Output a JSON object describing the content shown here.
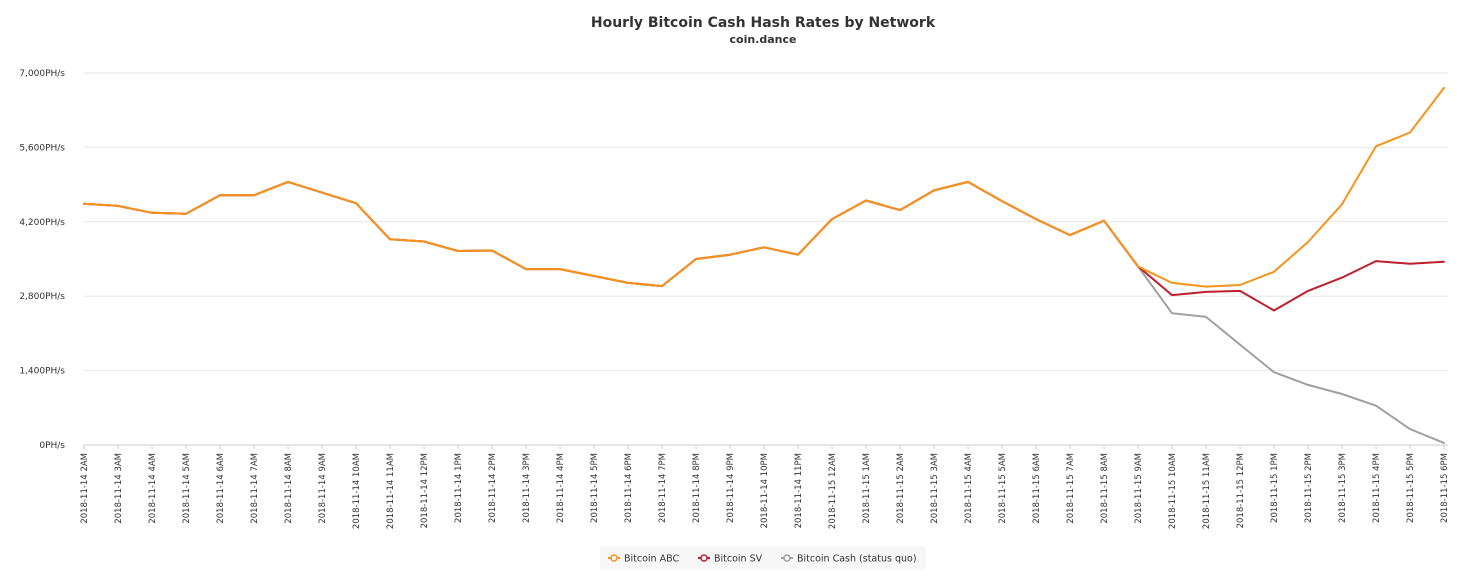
{
  "chart_data": {
    "type": "line",
    "title": "Hourly Bitcoin Cash Hash Rates by Network",
    "subtitle": "coin.dance",
    "xlabel": "",
    "ylabel": "",
    "ylim": [
      0,
      7000
    ],
    "yticks": [
      "0PH/s",
      "1,400PH/s",
      "2,800PH/s",
      "4,200PH/s",
      "5,600PH/s",
      "7,000PH/s"
    ],
    "ytick_values": [
      0,
      1400,
      2800,
      4200,
      5600,
      7000
    ],
    "categories": [
      "2018-11-14 2AM",
      "2018-11-14 3AM",
      "2018-11-14 4AM",
      "2018-11-14 5AM",
      "2018-11-14 6AM",
      "2018-11-14 7AM",
      "2018-11-14 8AM",
      "2018-11-14 9AM",
      "2018-11-14 10AM",
      "2018-11-14 11AM",
      "2018-11-14 12PM",
      "2018-11-14 1PM",
      "2018-11-14 2PM",
      "2018-11-14 3PM",
      "2018-11-14 4PM",
      "2018-11-14 5PM",
      "2018-11-14 6PM",
      "2018-11-14 7PM",
      "2018-11-14 8PM",
      "2018-11-14 9PM",
      "2018-11-14 10PM",
      "2018-11-14 11PM",
      "2018-11-15 12AM",
      "2018-11-15 1AM",
      "2018-11-15 2AM",
      "2018-11-15 3AM",
      "2018-11-15 4AM",
      "2018-11-15 5AM",
      "2018-11-15 6AM",
      "2018-11-15 7AM",
      "2018-11-15 8AM",
      "2018-11-15 9AM",
      "2018-11-15 10AM",
      "2018-11-15 11AM",
      "2018-11-15 12PM",
      "2018-11-15 1PM",
      "2018-11-15 2PM",
      "2018-11-15 3PM",
      "2018-11-15 4PM",
      "2018-11-15 5PM",
      "2018-11-15 6PM"
    ],
    "series": [
      {
        "name": "Bitcoin ABC",
        "color": "#f7931a",
        "values": [
          4540,
          4500,
          4370,
          4350,
          4700,
          4700,
          4950,
          4750,
          4550,
          3870,
          3830,
          3650,
          3660,
          3310,
          3310,
          3180,
          3050,
          2990,
          3500,
          3580,
          3720,
          3580,
          4250,
          4600,
          4420,
          4790,
          4950,
          4590,
          4250,
          3950,
          4220,
          3360,
          3050,
          2980,
          3010,
          3260,
          3820,
          4530,
          5620,
          5880,
          6720
        ]
      },
      {
        "name": "Bitcoin SV",
        "color": "#be1e2d",
        "values": [
          4540,
          4500,
          4370,
          4350,
          4700,
          4700,
          4950,
          4750,
          4550,
          3870,
          3830,
          3650,
          3660,
          3310,
          3310,
          3180,
          3050,
          2990,
          3500,
          3580,
          3720,
          3580,
          4250,
          4600,
          4420,
          4790,
          4950,
          4590,
          4250,
          3950,
          4220,
          3360,
          2820,
          2880,
          2900,
          2530,
          2900,
          3150,
          3460,
          3410,
          3450
        ]
      },
      {
        "name": "Bitcoin Cash (status quo)",
        "color": "#a0a0a0",
        "values": [
          4540,
          4500,
          4370,
          4350,
          4700,
          4700,
          4950,
          4750,
          4550,
          3870,
          3830,
          3650,
          3660,
          3310,
          3310,
          3180,
          3050,
          2990,
          3500,
          3580,
          3720,
          3580,
          4250,
          4600,
          4420,
          4790,
          4950,
          4590,
          4250,
          3950,
          4220,
          3360,
          2480,
          2410,
          1890,
          1370,
          1130,
          960,
          740,
          300,
          40
        ]
      }
    ],
    "legend_position": "bottom-center",
    "grid": true
  }
}
